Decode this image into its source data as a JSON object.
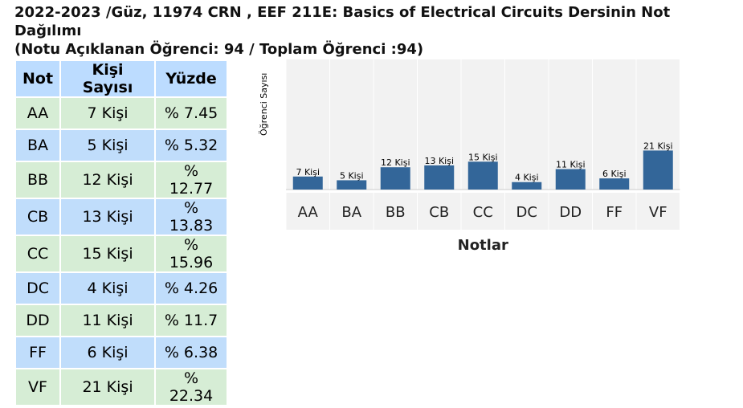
{
  "title_line1": "2022-2023 /Güz, 11974 CRN , EEF 211E: Basics of Electrical Circuits Dersinin Not Dağılımı",
  "title_line2": "(Notu Açıklanan Öğrenci: 94 / Toplam Öğrenci :94)",
  "table": {
    "headers": [
      "Not",
      "Kişi Sayısı",
      "Yüzde"
    ],
    "rows": [
      [
        "AA",
        "7 Kişi",
        "% 7.45"
      ],
      [
        "BA",
        "5 Kişi",
        "% 5.32"
      ],
      [
        "BB",
        "12 Kişi",
        "% 12.77"
      ],
      [
        "CB",
        "13 Kişi",
        "% 13.83"
      ],
      [
        "CC",
        "15 Kişi",
        "% 15.96"
      ],
      [
        "DC",
        "4 Kişi",
        "% 4.26"
      ],
      [
        "DD",
        "11 Kişi",
        "% 11.7"
      ],
      [
        "FF",
        "6 Kişi",
        "% 6.38"
      ],
      [
        "VF",
        "21 Kişi",
        "% 22.34"
      ]
    ]
  },
  "colors": {
    "bar": "#336699",
    "plot_bg": "#f2f2f2",
    "header_bg": "#bcdcff",
    "row_blue": "#c0ddfb",
    "row_green": "#d6edd5"
  },
  "chart_data": {
    "type": "bar",
    "categories": [
      "AA",
      "BA",
      "BB",
      "CB",
      "CC",
      "DC",
      "DD",
      "FF",
      "VF"
    ],
    "values": [
      7,
      5,
      12,
      13,
      15,
      4,
      11,
      6,
      21
    ],
    "data_labels": [
      "7 Kişi",
      "5 Kişi",
      "12 Kişi",
      "13 Kişi",
      "15 Kişi",
      "4 Kişi",
      "11 Kişi",
      "6 Kişi",
      "21 Kişi"
    ],
    "xlabel": "Notlar",
    "ylabel": "Öğrenci Sayısı",
    "ylim": [
      0,
      70
    ],
    "grid": false
  }
}
